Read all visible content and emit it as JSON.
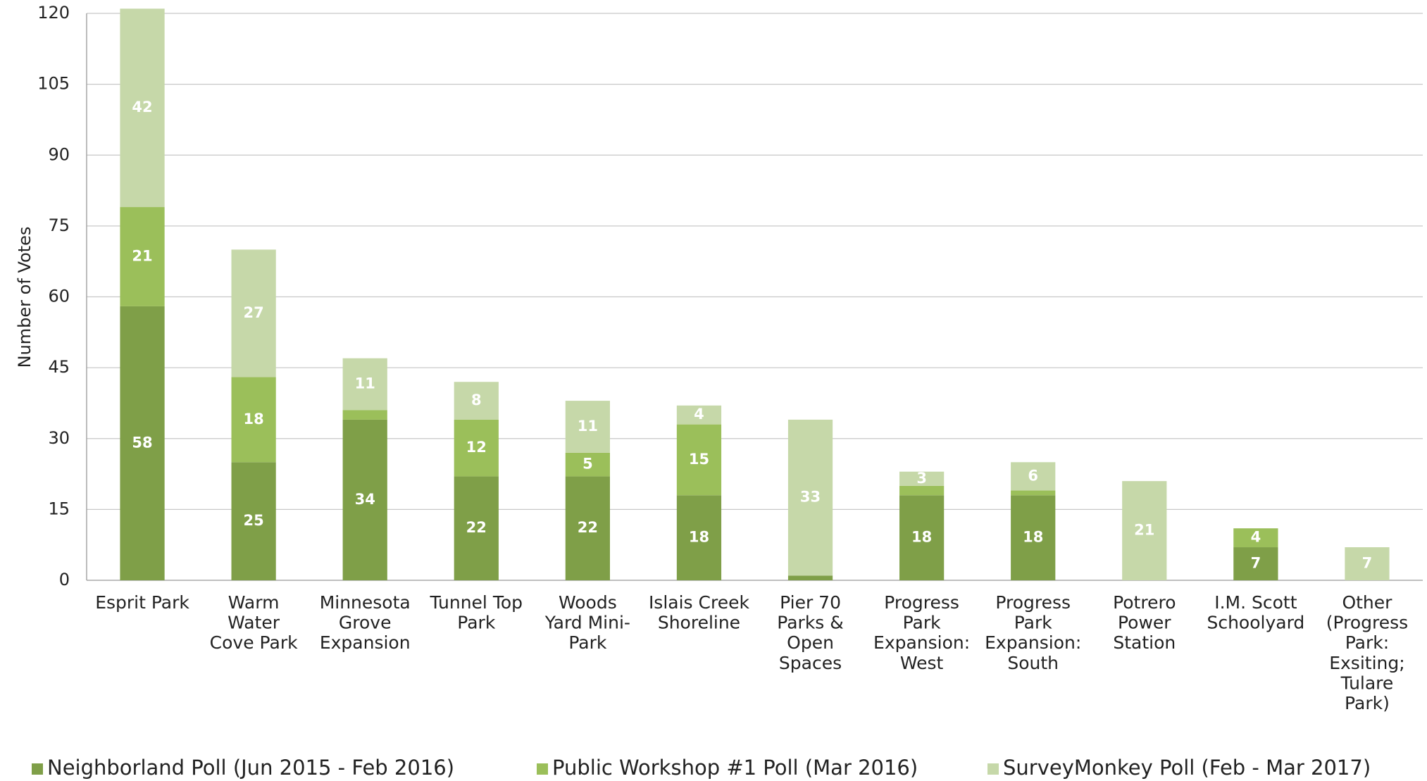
{
  "chart_data": {
    "type": "stacked_bar",
    "y_label": "Number of Votes",
    "categories": [
      "Esprit Park",
      "Warm\nWater\nCove Park",
      "Minnesota\nGrove\nExpansion",
      "Tunnel Top\nPark",
      "Woods\nYard Mini-\nPark",
      "Islais Creek\nShoreline",
      "Pier 70\nParks &\nOpen\nSpaces",
      "Progress\nPark\nExpansion:\nWest",
      "Progress\nPark\nExpansion:\nSouth",
      "Potrero\nPower\nStation",
      "I.M. Scott\nSchoolyard",
      "Other\n(Progress\nPark:\nExsiting;\nTulare\nPark)"
    ],
    "series": [
      {
        "name": "Neighborland Poll (Jun 2015 - Feb 2016)",
        "color": "#7f9f48",
        "values": [
          58,
          25,
          34,
          22,
          22,
          18,
          1,
          18,
          18,
          null,
          7,
          null
        ]
      },
      {
        "name": "Public Workshop #1 Poll (Mar 2016)",
        "color": "#9bbf5a",
        "values": [
          21,
          18,
          2,
          12,
          5,
          15,
          null,
          2,
          1,
          null,
          4,
          null
        ]
      },
      {
        "name": "SurveyMonkey Poll (Feb - Mar 2017)",
        "color": "#c6d8a9",
        "values": [
          42,
          27,
          11,
          8,
          11,
          4,
          33,
          3,
          6,
          21,
          null,
          7
        ]
      }
    ],
    "ylim": [
      0,
      120
    ],
    "yticks": [
      0,
      15,
      30,
      45,
      60,
      75,
      90,
      105,
      120
    ],
    "grid": true,
    "legend": "bottom"
  }
}
